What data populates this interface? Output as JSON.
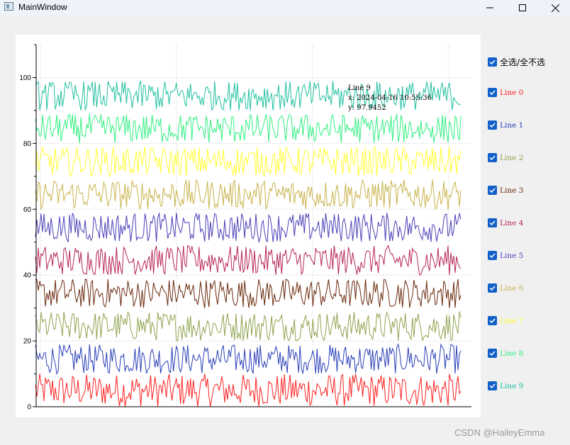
{
  "window": {
    "title": "MainWindow",
    "controls": [
      "minimize-icon",
      "maximize-icon",
      "close-icon"
    ]
  },
  "chart_data": {
    "type": "line",
    "ylim": [
      0,
      110
    ],
    "yticks": [
      "0",
      "20",
      "40",
      "60",
      "80",
      "100"
    ],
    "grid": true,
    "series": [
      {
        "name": "Line 0",
        "color": "#ff2020",
        "min": 0,
        "max": 10
      },
      {
        "name": "Line 1",
        "color": "#2a3fb8",
        "min": 10,
        "max": 19
      },
      {
        "name": "Line 2",
        "color": "#8fa34f",
        "min": 20,
        "max": 29
      },
      {
        "name": "Line 3",
        "color": "#6b2a0e",
        "min": 30,
        "max": 39
      },
      {
        "name": "Line 4",
        "color": "#b8245a",
        "min": 40,
        "max": 49
      },
      {
        "name": "Line 5",
        "color": "#4a3fb8",
        "min": 50,
        "max": 59
      },
      {
        "name": "Line 6",
        "color": "#c8b24a",
        "min": 60,
        "max": 69
      },
      {
        "name": "Line 7",
        "color": "#ffff30",
        "min": 70,
        "max": 79
      },
      {
        "name": "Line 8",
        "color": "#30f080",
        "min": 80,
        "max": 89
      },
      {
        "name": "Line 9",
        "color": "#20c0a0",
        "min": 90,
        "max": 99
      }
    ]
  },
  "tooltip": {
    "series": "Line 9",
    "x": "x: 2024-04-16 10:55:36",
    "y": "y: 97.9452"
  },
  "legend": {
    "select_all_label": "全选/全不选",
    "items": [
      {
        "label": "Line 0",
        "color": "#ff2020"
      },
      {
        "label": "Line 1",
        "color": "#2a3fb8"
      },
      {
        "label": "Line 2",
        "color": "#8fa34f"
      },
      {
        "label": "Line 3",
        "color": "#6b2a0e"
      },
      {
        "label": "Line 4",
        "color": "#b8245a"
      },
      {
        "label": "Line 5",
        "color": "#4a3fb8"
      },
      {
        "label": "Line 6",
        "color": "#c8b24a"
      },
      {
        "label": "Line 7",
        "color": "#ffff30"
      },
      {
        "label": "Line 8",
        "color": "#30f080"
      },
      {
        "label": "Line 9",
        "color": "#20c0a0"
      }
    ]
  },
  "watermark": "CSDN @HaileyEmma"
}
